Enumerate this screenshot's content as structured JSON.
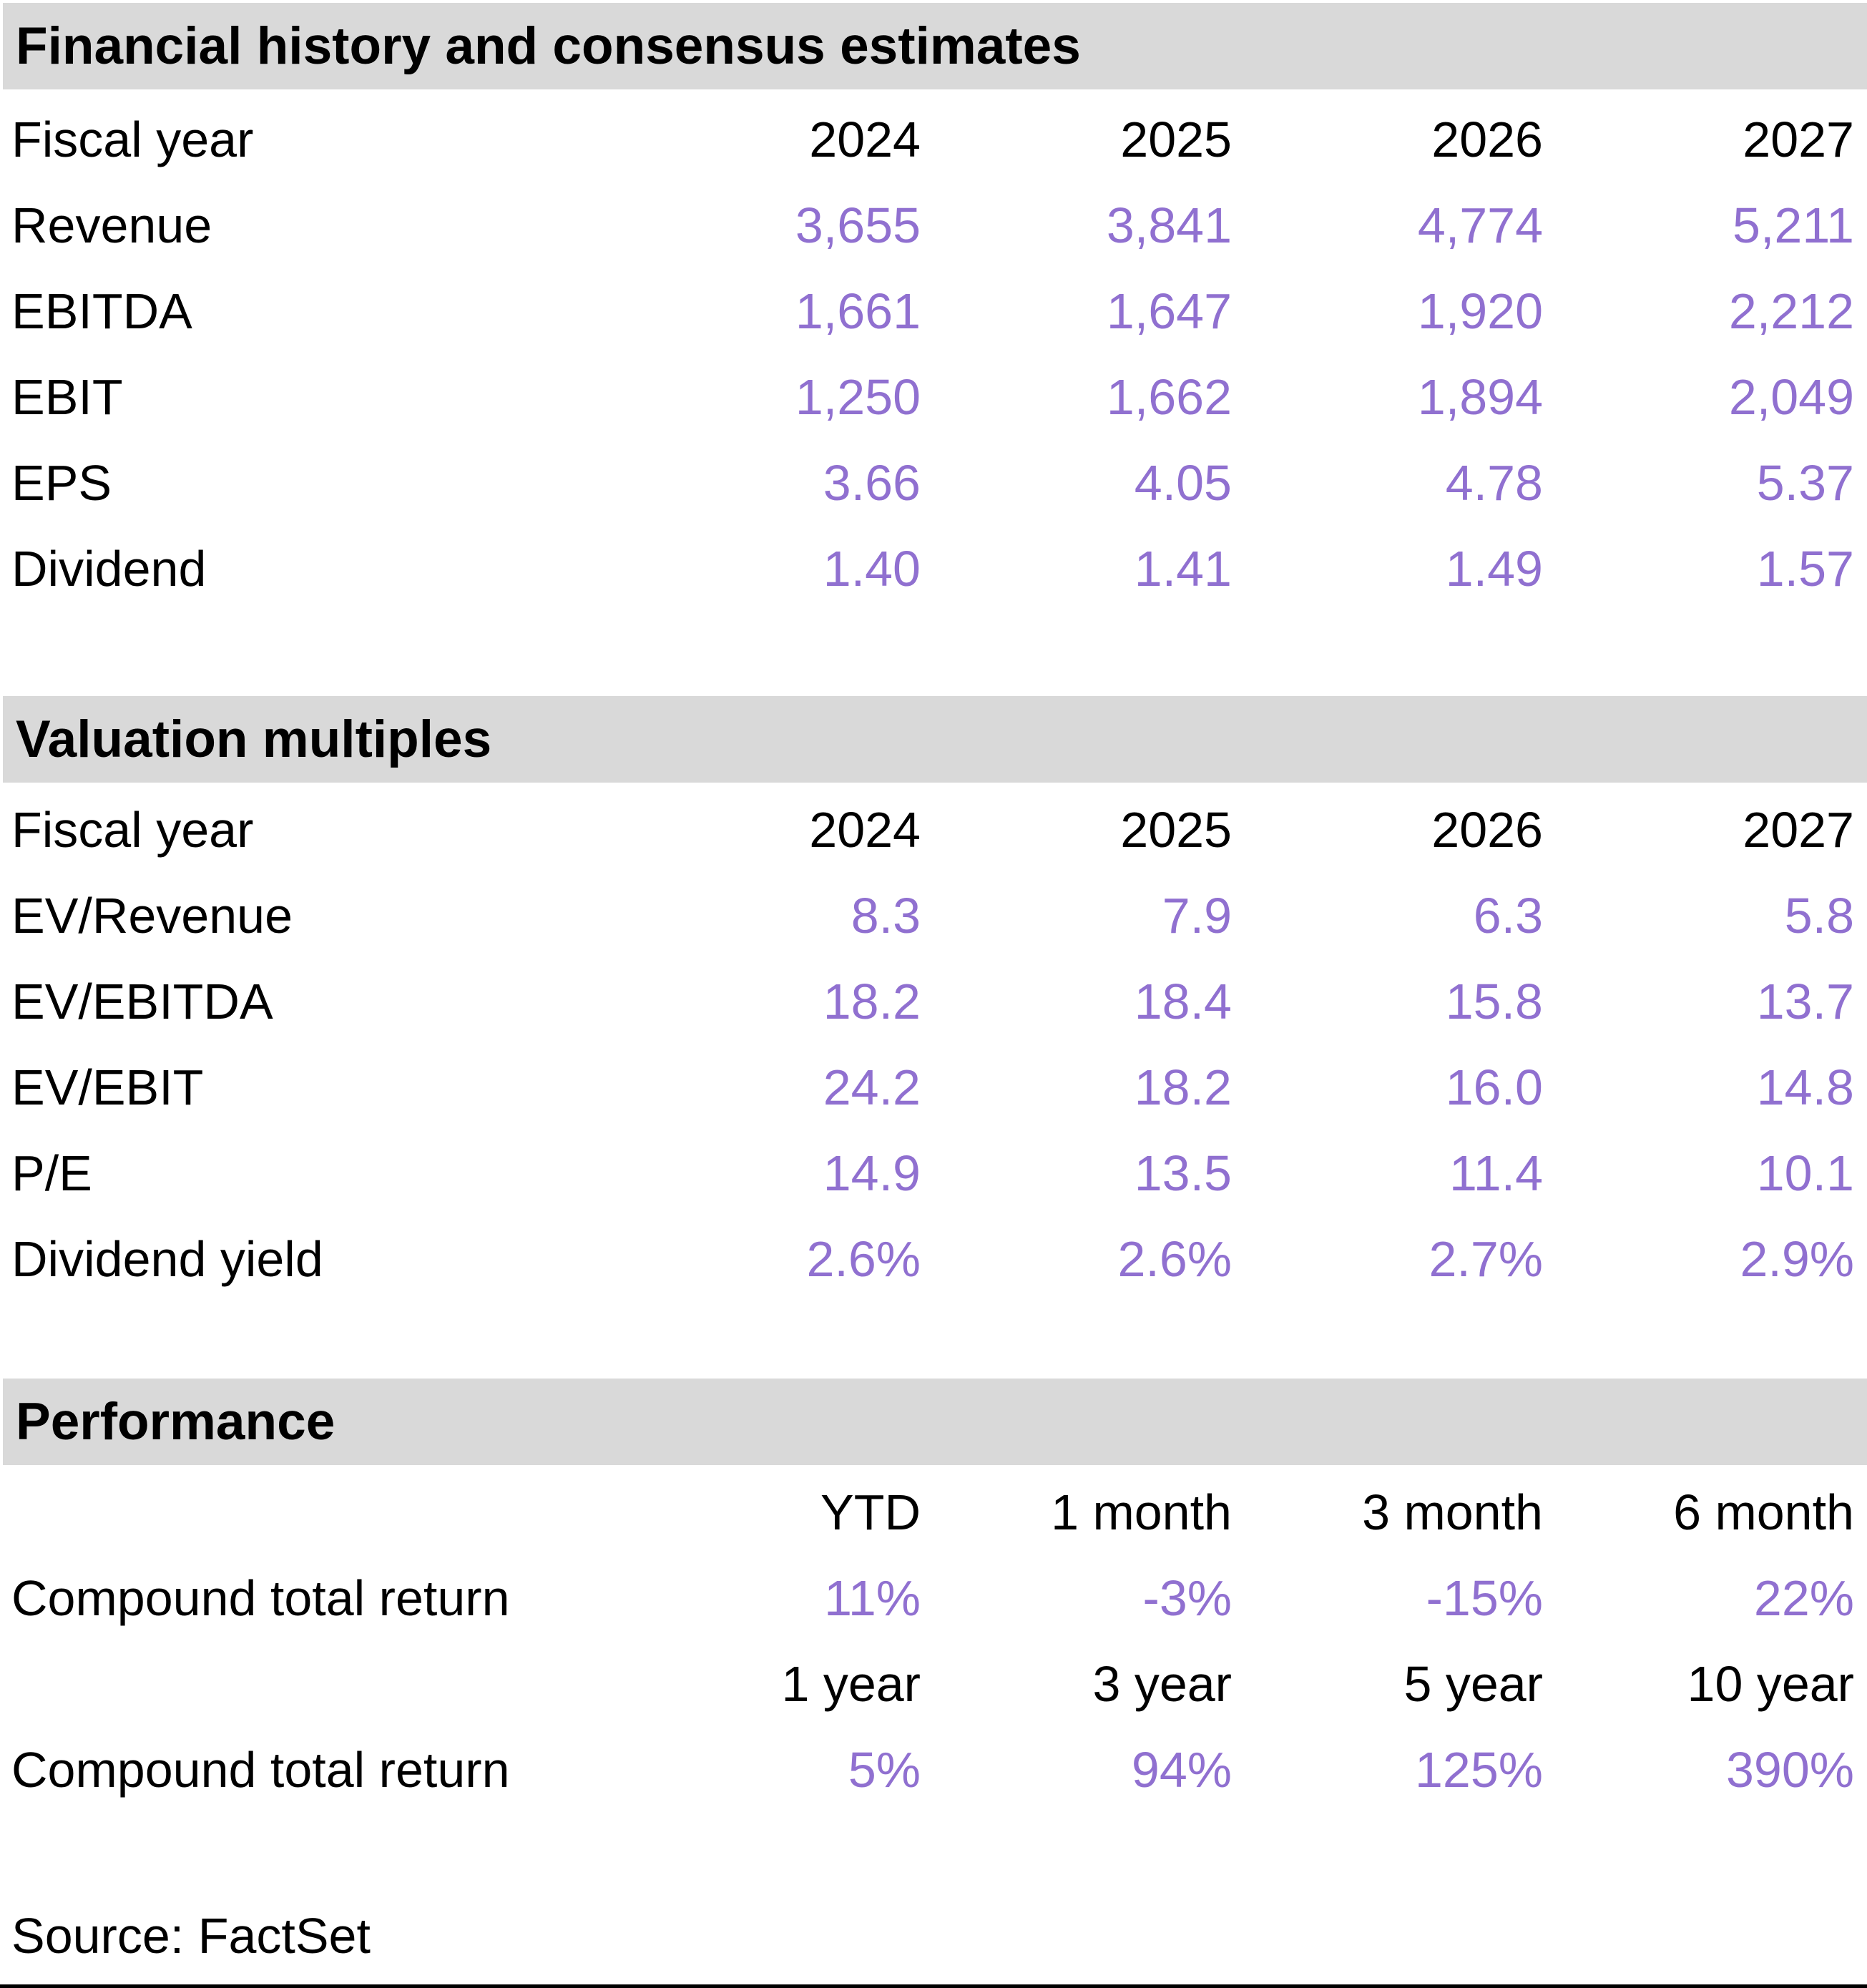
{
  "colors": {
    "accent_purple": "#9070D0",
    "band_gray": "#D9D9D9",
    "text_black": "#000000"
  },
  "source": "Source: FactSet",
  "sections": {
    "financial": {
      "title": "Financial history and consensus estimates",
      "header": {
        "label": "Fiscal year",
        "cols": [
          "2024",
          "2025",
          "2026",
          "2027"
        ]
      },
      "rows": [
        {
          "label": "Revenue",
          "values": [
            "3,655",
            "3,841",
            "4,774",
            "5,211"
          ]
        },
        {
          "label": "EBITDA",
          "values": [
            "1,661",
            "1,647",
            "1,920",
            "2,212"
          ]
        },
        {
          "label": "EBIT",
          "values": [
            "1,250",
            "1,662",
            "1,894",
            "2,049"
          ]
        },
        {
          "label": "EPS",
          "values": [
            "3.66",
            "4.05",
            "4.78",
            "5.37"
          ]
        },
        {
          "label": "Dividend",
          "values": [
            "1.40",
            "1.41",
            "1.49",
            "1.57"
          ]
        }
      ]
    },
    "valuation": {
      "title": "Valuation multiples",
      "header": {
        "label": "Fiscal year",
        "cols": [
          "2024",
          "2025",
          "2026",
          "2027"
        ]
      },
      "rows": [
        {
          "label": "EV/Revenue",
          "values": [
            "8.3",
            "7.9",
            "6.3",
            "5.8"
          ]
        },
        {
          "label": "EV/EBITDA",
          "values": [
            "18.2",
            "18.4",
            "15.8",
            "13.7"
          ]
        },
        {
          "label": "EV/EBIT",
          "values": [
            "24.2",
            "18.2",
            "16.0",
            "14.8"
          ]
        },
        {
          "label": "P/E",
          "values": [
            "14.9",
            "13.5",
            "11.4",
            "10.1"
          ]
        },
        {
          "label": "Dividend yield",
          "values": [
            "2.6%",
            "2.6%",
            "2.7%",
            "2.9%"
          ]
        }
      ]
    },
    "performance": {
      "title": "Performance",
      "groups": [
        {
          "header": [
            "YTD",
            "1 month",
            "3 month",
            "6 month"
          ],
          "label": "Compound total return",
          "values": [
            "11%",
            "-3%",
            "-15%",
            "22%"
          ]
        },
        {
          "header": [
            "1 year",
            "3 year",
            "5 year",
            "10 year"
          ],
          "label": "Compound total return",
          "values": [
            "5%",
            "94%",
            "125%",
            "390%"
          ]
        }
      ]
    }
  }
}
